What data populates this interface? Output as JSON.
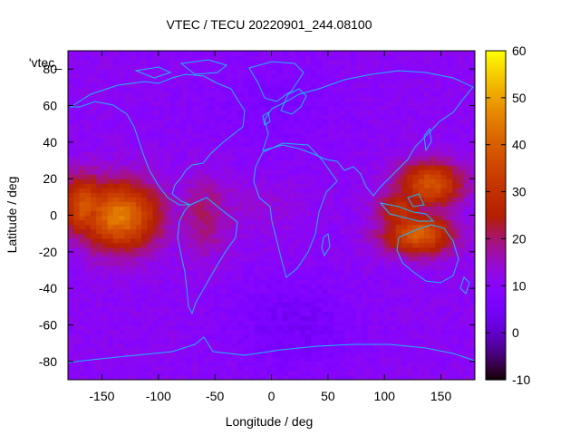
{
  "chart_data": {
    "type": "heatmap",
    "title": "VTEC / TECU 20220901_244.08100",
    "xlabel": "Longitude / deg",
    "ylabel": "Latitude / deg",
    "key_label": "'vtec_",
    "xlim": [
      -180,
      180
    ],
    "ylim": [
      -90,
      90
    ],
    "xticks": [
      -150,
      -100,
      -50,
      0,
      50,
      100,
      150
    ],
    "yticks": [
      -80,
      -60,
      -40,
      -20,
      0,
      20,
      40,
      60,
      80
    ],
    "colorbar": {
      "range": [
        -10,
        60
      ],
      "ticks": [
        -10,
        0,
        10,
        20,
        30,
        40,
        50,
        60
      ],
      "palette": "gnuplot rgbformulae 7,5,15 (black-blue-purple-red-orange-yellow)"
    },
    "grid": {
      "lon_step": 5,
      "lat_step": 2.5,
      "background_level": 10.5,
      "features": [
        {
          "description": "equatorial crest Pacific (west)",
          "lon": -135,
          "lat": 0,
          "peak": 45,
          "sigma_lon": 25,
          "sigma_lat": 13
        },
        {
          "description": "equatorial crest Pacific secondary",
          "lon": -165,
          "lat": 5,
          "peak": 38,
          "sigma_lon": 16,
          "sigma_lat": 12
        },
        {
          "description": "north anomaly crest over Asia/Pacific",
          "lon": 140,
          "lat": 17,
          "peak": 38,
          "sigma_lon": 20,
          "sigma_lat": 9
        },
        {
          "description": "south anomaly crest over Asia/Pacific",
          "lon": 130,
          "lat": -10,
          "peak": 40,
          "sigma_lon": 22,
          "sigma_lat": 8
        },
        {
          "description": "Maritime continent equatorial",
          "lon": 115,
          "lat": 2,
          "peak": 30,
          "sigma_lon": 15,
          "sigma_lat": 10
        },
        {
          "description": "South America moderate",
          "lon": -60,
          "lat": 0,
          "peak": 20,
          "sigma_lon": 18,
          "sigma_lat": 16
        },
        {
          "description": "Atlantic/Africa faint band",
          "lon": -20,
          "lat": 5,
          "peak": 14,
          "sigma_lon": 30,
          "sigma_lat": 12
        }
      ],
      "low_regions": [
        {
          "lon": 20,
          "lat": -60,
          "level": 5
        },
        {
          "lon": 0,
          "lat": 60,
          "level": 7
        }
      ]
    }
  },
  "colors": {
    "coastline": "#1fb6ff",
    "frame": "#000000"
  }
}
